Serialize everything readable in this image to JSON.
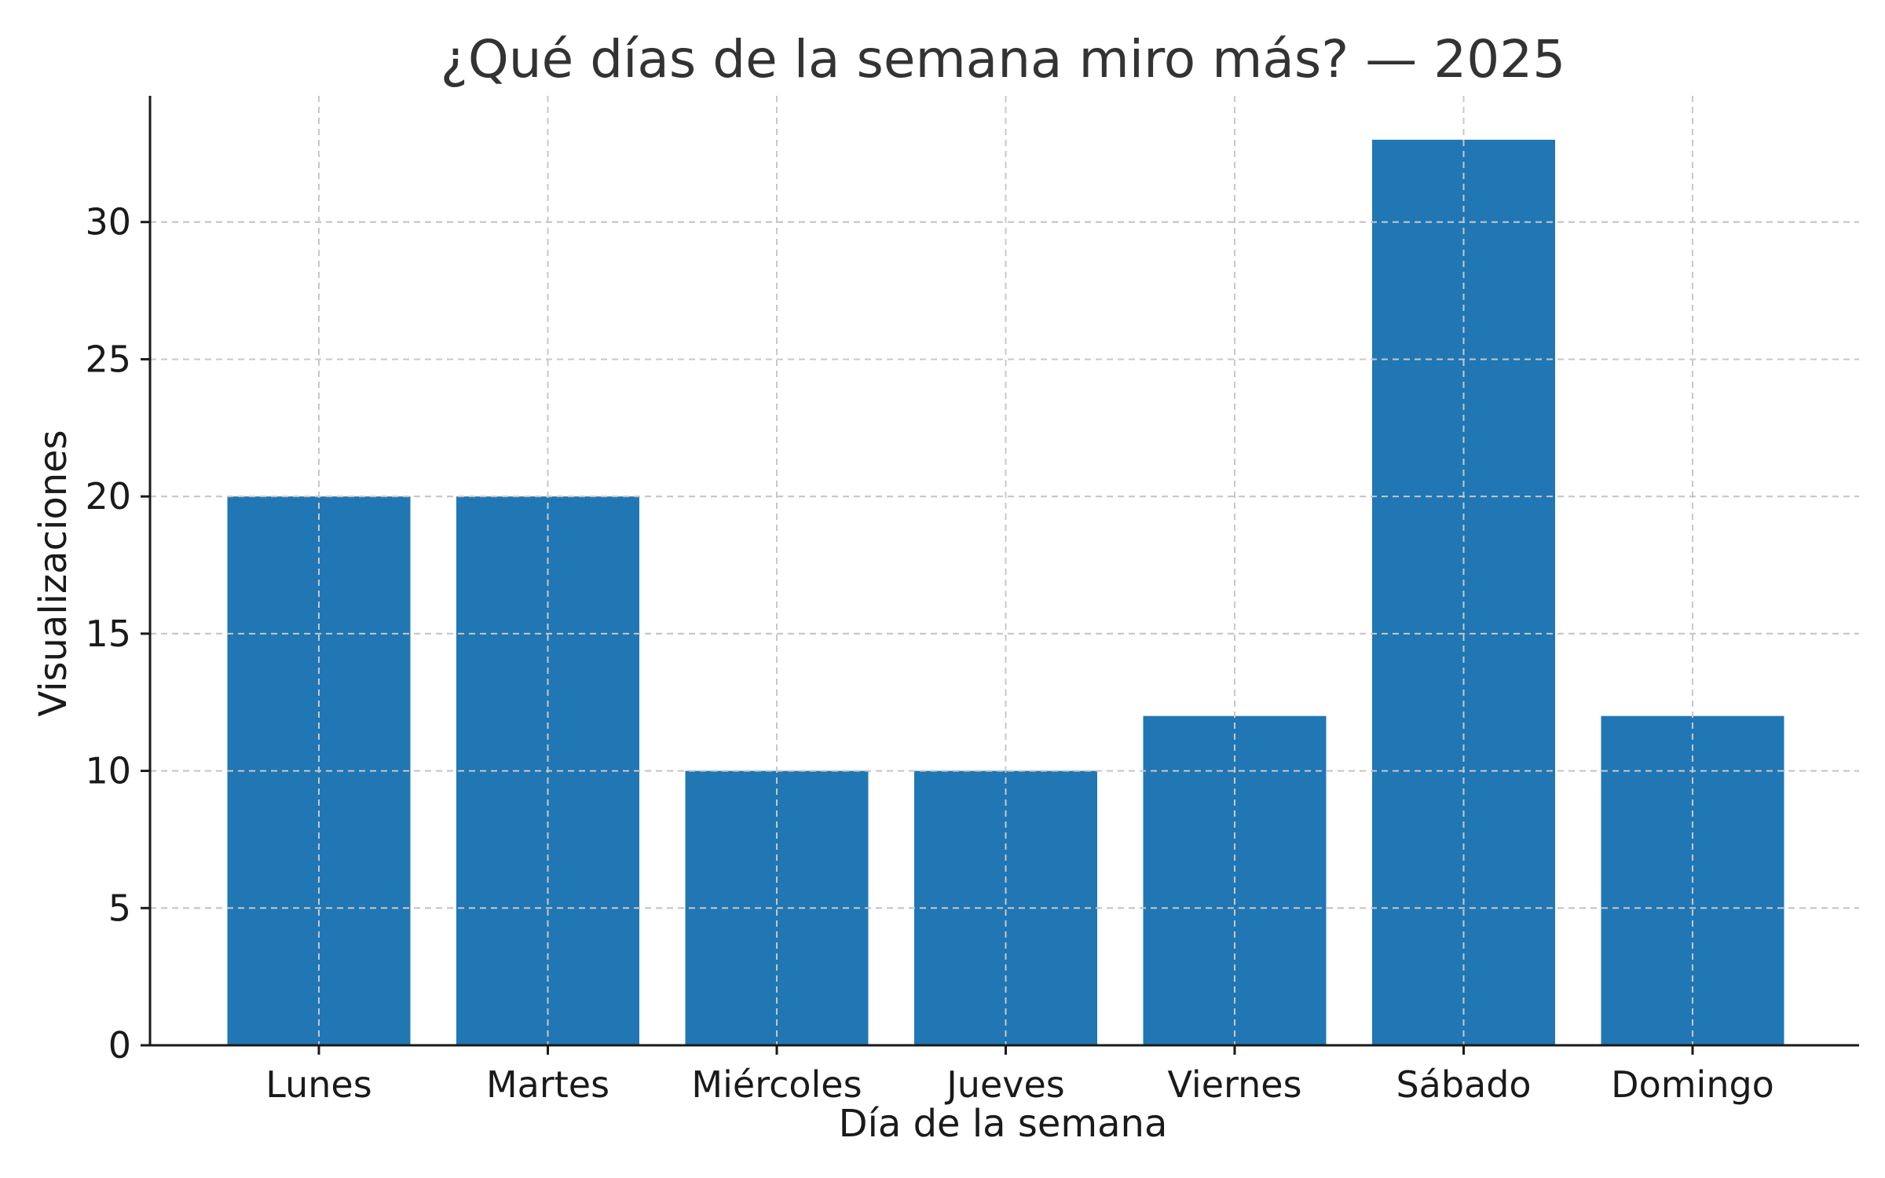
{
  "chart_data": {
    "type": "bar",
    "title": "¿Qué días de la semana miro más? — 2025",
    "xlabel": "Día de la semana",
    "ylabel": "Visualizaciones",
    "categories": [
      "Lunes",
      "Martes",
      "Miércoles",
      "Jueves",
      "Viernes",
      "Sábado",
      "Domingo"
    ],
    "values": [
      20,
      20,
      10,
      10,
      12,
      33,
      12
    ],
    "ylim": [
      0,
      34.6
    ],
    "yticks": [
      0,
      5,
      10,
      15,
      20,
      25,
      30
    ],
    "grid": true,
    "bar_color": "#2077b4"
  }
}
